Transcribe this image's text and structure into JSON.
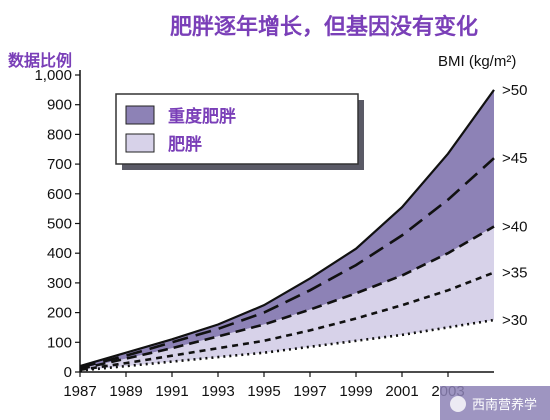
{
  "chart_data": {
    "type": "area",
    "title": "肥胖逐年增长，但基因没有变化",
    "ylabel": "数据比例",
    "bmi_unit": "BMI (kg/m²)",
    "x_ticks": [
      "1987",
      "1989",
      "1991",
      "1993",
      "1995",
      "1997",
      "1999",
      "2001",
      "2003"
    ],
    "y_ticks": [
      "0",
      "100",
      "200",
      "300",
      "400",
      "500",
      "600",
      "700",
      "800",
      "900",
      "1,000"
    ],
    "xlim": [
      1987,
      2005
    ],
    "ylim": [
      0,
      1000
    ],
    "x": [
      1987,
      1989,
      1991,
      1993,
      1995,
      1997,
      1999,
      2001,
      2003,
      2005
    ],
    "series": [
      {
        "name": ">50",
        "style": "solid",
        "values": [
          20,
          65,
          110,
          160,
          225,
          315,
          415,
          555,
          735,
          950
        ]
      },
      {
        "name": ">45",
        "style": "long-dash",
        "values": [
          15,
          55,
          100,
          145,
          200,
          275,
          360,
          460,
          580,
          720
        ]
      },
      {
        "name": ">40",
        "style": "dash",
        "values": [
          10,
          45,
          80,
          120,
          160,
          210,
          265,
          325,
          400,
          490
        ]
      },
      {
        "name": ">35",
        "style": "short-dash",
        "values": [
          7,
          30,
          55,
          80,
          105,
          140,
          180,
          225,
          275,
          335
        ]
      },
      {
        "name": ">30",
        "style": "dotted",
        "values": [
          5,
          20,
          35,
          50,
          65,
          85,
          105,
          125,
          150,
          175
        ]
      }
    ],
    "legend": {
      "position": "top-left",
      "items": [
        {
          "label": "重度肥胖",
          "color": "#8d82b6"
        },
        {
          "label": "肥胖",
          "color": "#d7d2e9"
        }
      ]
    },
    "colors": {
      "dark_band": "#8d82b6",
      "light_band": "#d7d2e9",
      "annotation": "#7a3fb8"
    },
    "watermark": "西南营养学"
  }
}
